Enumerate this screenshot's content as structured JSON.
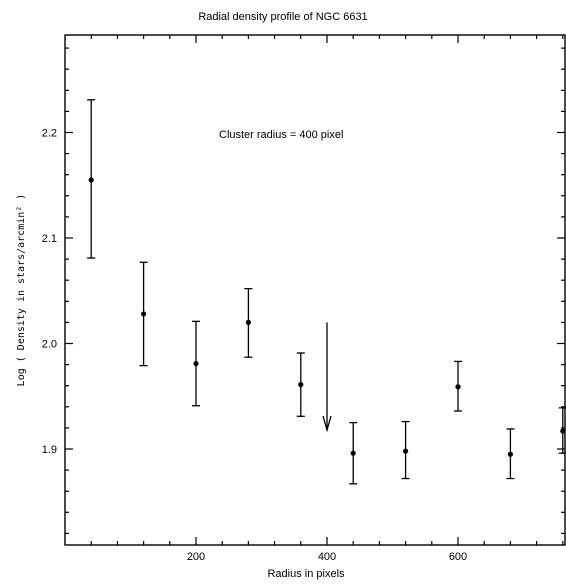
{
  "chart_data": {
    "type": "scatter",
    "title": "Radial density profile of NGC 6631",
    "xlabel": "Radius in pixels",
    "ylabel": "Log ( Density in stars/arcmin² )",
    "annotation": "Cluster radius = 400 pixel",
    "xlim": [
      0,
      760
    ],
    "ylim": [
      1.81,
      2.29
    ],
    "x_ticks": [
      200,
      400,
      600
    ],
    "x_tick_labels": [
      "200",
      "400",
      "600"
    ],
    "y_ticks": [
      1.9,
      2.0,
      2.1,
      2.2
    ],
    "y_tick_labels": [
      "1.9",
      "2.0",
      "2.1",
      "2.2"
    ],
    "grid": false,
    "points": [
      {
        "x": 40,
        "y": 2.155,
        "ylow": 2.081,
        "yhigh": 2.231
      },
      {
        "x": 120,
        "y": 2.028,
        "ylow": 1.979,
        "yhigh": 2.077
      },
      {
        "x": 200,
        "y": 1.981,
        "ylow": 1.941,
        "yhigh": 2.021
      },
      {
        "x": 280,
        "y": 2.02,
        "ylow": 1.987,
        "yhigh": 2.052
      },
      {
        "x": 360,
        "y": 1.961,
        "ylow": 1.931,
        "yhigh": 1.991
      },
      {
        "x": 440,
        "y": 1.896,
        "ylow": 1.867,
        "yhigh": 1.925
      },
      {
        "x": 520,
        "y": 1.898,
        "ylow": 1.872,
        "yhigh": 1.926
      },
      {
        "x": 600,
        "y": 1.959,
        "ylow": 1.936,
        "yhigh": 1.983
      },
      {
        "x": 680,
        "y": 1.895,
        "ylow": 1.872,
        "yhigh": 1.919
      },
      {
        "x": 760,
        "y": 1.917,
        "ylow": 1.896,
        "yhigh": 1.939
      }
    ],
    "arrow": {
      "x": 400,
      "y_from": 2.02,
      "y_to": 1.918
    }
  }
}
